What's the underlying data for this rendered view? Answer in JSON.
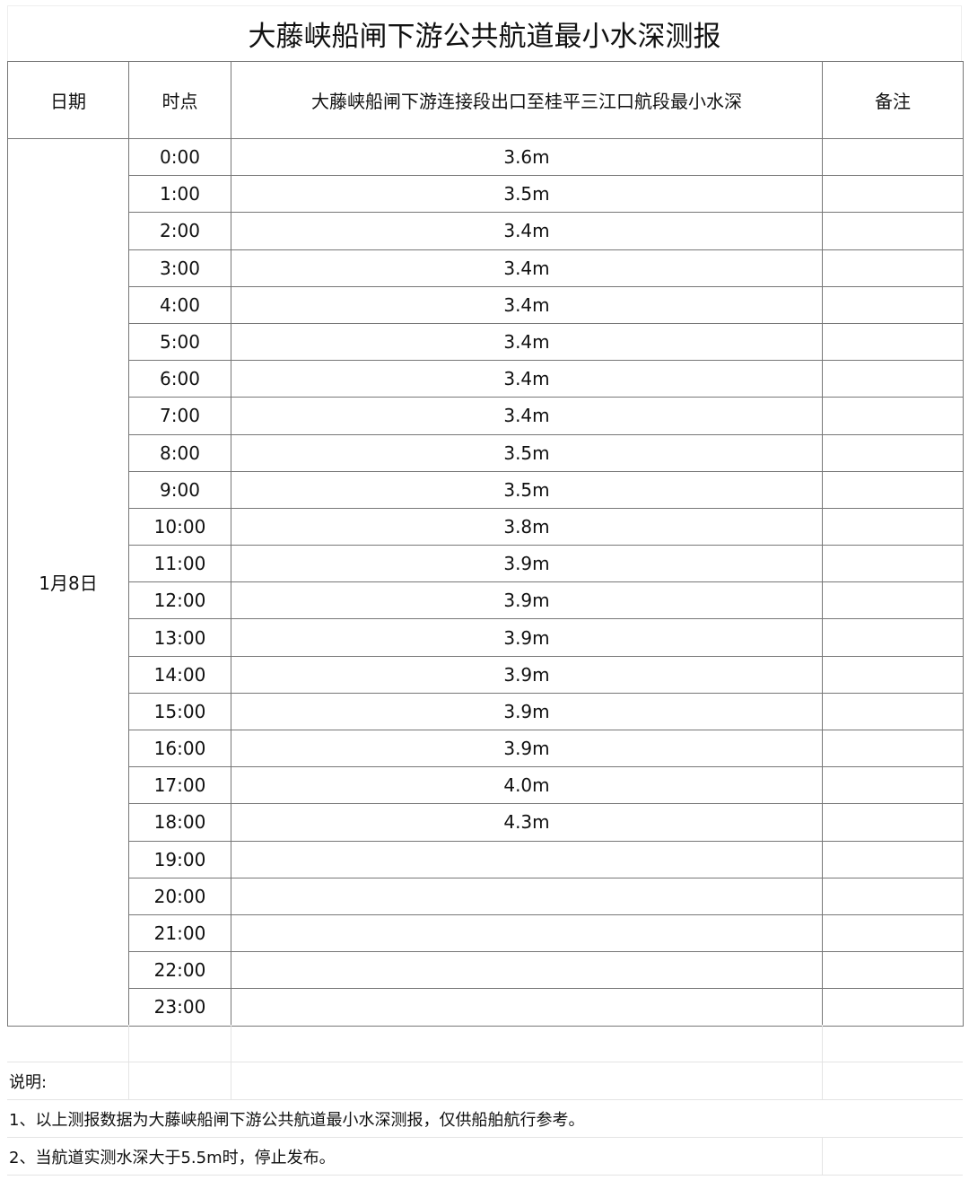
{
  "title": "大藤峡船闸下游公共航道最小水深测报",
  "headers": {
    "date": "日期",
    "time": "时点",
    "depth": "大藤峡船闸下游连接段出口至桂平三江口航段最小水深",
    "remark": "备注"
  },
  "date": "1月8日",
  "rows": [
    {
      "time": "0:00",
      "depth": "3.6m"
    },
    {
      "time": "1:00",
      "depth": "3.5m"
    },
    {
      "time": "2:00",
      "depth": "3.4m"
    },
    {
      "time": "3:00",
      "depth": "3.4m"
    },
    {
      "time": "4:00",
      "depth": "3.4m"
    },
    {
      "time": "5:00",
      "depth": "3.4m"
    },
    {
      "time": "6:00",
      "depth": "3.4m"
    },
    {
      "time": "7:00",
      "depth": "3.4m"
    },
    {
      "time": "8:00",
      "depth": "3.5m"
    },
    {
      "time": "9:00",
      "depth": "3.5m"
    },
    {
      "time": "10:00",
      "depth": "3.8m"
    },
    {
      "time": "11:00",
      "depth": "3.9m"
    },
    {
      "time": "12:00",
      "depth": "3.9m"
    },
    {
      "time": "13:00",
      "depth": "3.9m"
    },
    {
      "time": "14:00",
      "depth": "3.9m"
    },
    {
      "time": "15:00",
      "depth": "3.9m"
    },
    {
      "time": "16:00",
      "depth": "3.9m"
    },
    {
      "time": "17:00",
      "depth": "4.0m"
    },
    {
      "time": "18:00",
      "depth": "4.3m"
    },
    {
      "time": "19:00",
      "depth": ""
    },
    {
      "time": "20:00",
      "depth": ""
    },
    {
      "time": "21:00",
      "depth": ""
    },
    {
      "time": "22:00",
      "depth": ""
    },
    {
      "time": "23:00",
      "depth": ""
    }
  ],
  "notes": {
    "heading": "说明:",
    "items": [
      "1、以上测报数据为大藤峡船闸下游公共航道最小水深测报，仅供船舶航行参考。",
      "2、当航道实测水深大于5.5m时，停止发布。"
    ]
  }
}
